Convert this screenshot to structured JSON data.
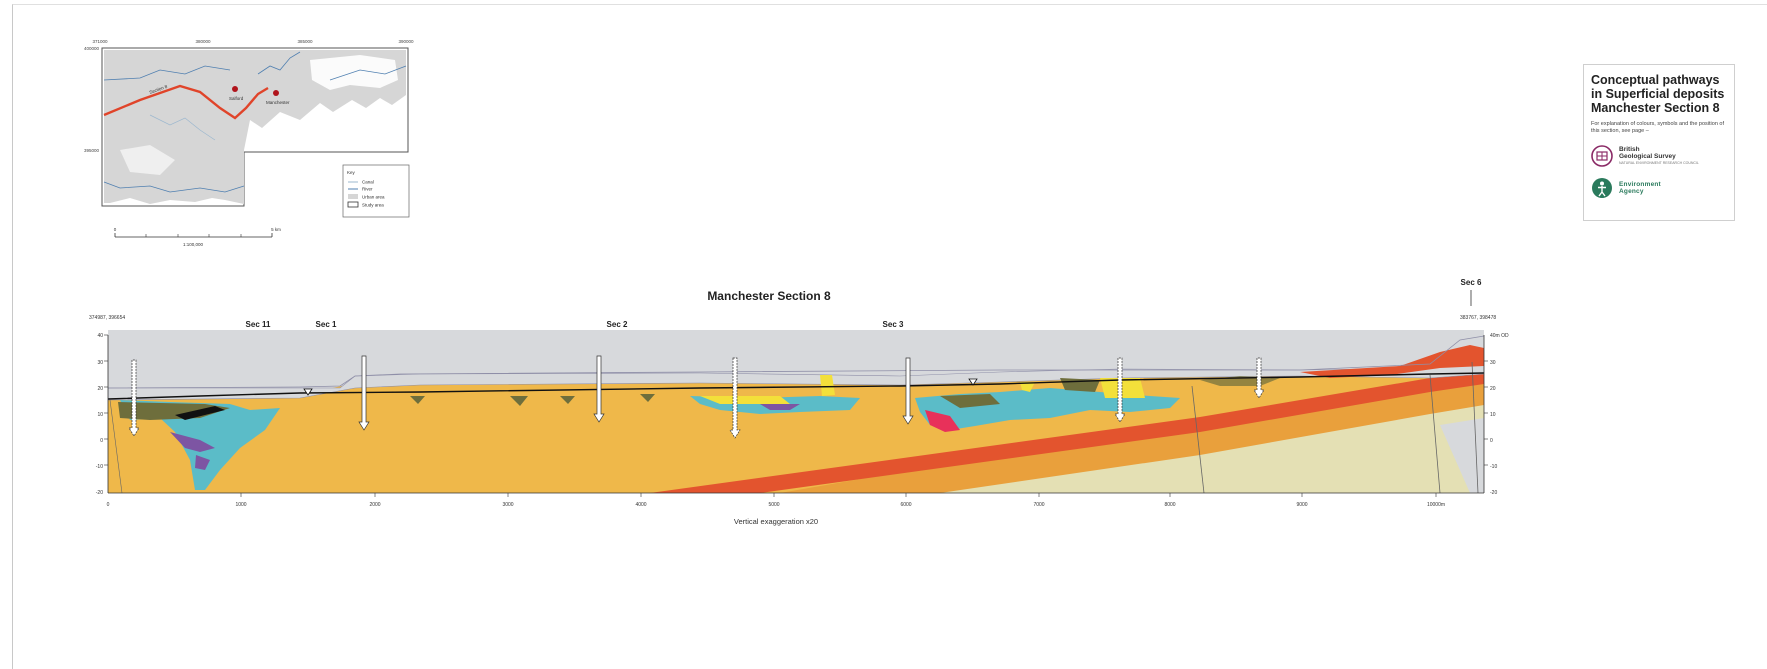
{
  "legend_box": {
    "title": "Conceptual pathways in Superficial deposits Manchester Section 8",
    "subtitle": "For explanation of colours, symbols and the position of this section, see page –",
    "bgs_logo": {
      "line1": "British",
      "line2": "Geological Survey",
      "line3": "NATURAL ENVIRONMENT RESEARCH COUNCIL"
    },
    "ea_logo": {
      "line1": "Environment",
      "line2": "Agency"
    }
  },
  "inset_map": {
    "top_ticks": [
      "371000",
      "380000",
      "385000",
      "390000"
    ],
    "left_ticks": [
      "400000",
      "395000"
    ],
    "section_label": "Section 8",
    "places": [
      {
        "name": "Salford"
      },
      {
        "name": "Manchester"
      }
    ],
    "key_title": "Key",
    "key_items": [
      "Canal",
      "River",
      "Urban area",
      "Study area"
    ],
    "scale_ticks": [
      "0",
      "5 km"
    ],
    "scale_ratio": "1:100,000",
    "colors": {
      "urban": "#d6d6d6",
      "river": "#4f7fb0",
      "canal": "#9db8cf",
      "section": "#e0442a",
      "place": "#b0141c"
    }
  },
  "section": {
    "title": "Manchester Section 8",
    "left_coord": "374987, 396654",
    "right_coord": "383767, 398478",
    "top_right_unit": "40m OD",
    "y_ticks_left": [
      "40",
      "30",
      "20",
      "10",
      "0",
      "-10",
      "-20"
    ],
    "y_ticks_right": [
      "30",
      "20",
      "10",
      "0",
      "-10",
      "-20"
    ],
    "x_ticks": [
      "0",
      "1000",
      "2000",
      "3000",
      "4000",
      "5000",
      "6000",
      "7000",
      "8000",
      "9000",
      "10000m"
    ],
    "cross_sections": [
      "Sec 11",
      "Sec 1",
      "Sec 2",
      "Sec 3",
      "Sec 6"
    ],
    "exaggeration": "Vertical exaggeration x20",
    "colors": {
      "bedrock": "#efb84a",
      "mudstone": "#e9a03c",
      "sandstone": "#e3542e",
      "pale": "#e4e0b4",
      "grey": "#d7d9dc",
      "till": "#5bbcc8",
      "clay": "#7d55a3",
      "sand": "#f3e03a",
      "peat": "#6e6e3c",
      "made": "#e8315a"
    }
  }
}
